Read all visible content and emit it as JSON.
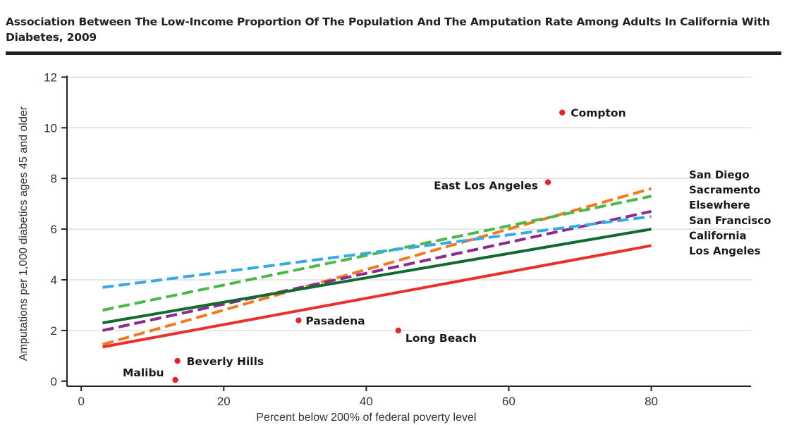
{
  "chart_data": {
    "type": "scatter",
    "title": "Association Between The Low-Income Proportion Of The Population And The Amputation Rate Among Adults In California With Diabetes, 2009",
    "xlabel": "Percent below 200% of federal poverty level",
    "ylabel": "Amputations per 1,000 diabetics ages 45 and older",
    "xlim": [
      -2,
      94
    ],
    "ylim": [
      -0.2,
      12.4
    ],
    "xticks": [
      0,
      20,
      40,
      60,
      80
    ],
    "yticks": [
      0,
      2,
      4,
      6,
      8,
      10,
      12
    ],
    "grid": "horizontal",
    "points": [
      {
        "label": "Compton",
        "x": 67.5,
        "y": 10.6
      },
      {
        "label": "East Los Angeles",
        "x": 65.5,
        "y": 7.85
      },
      {
        "label": "Pasadena",
        "x": 30.5,
        "y": 2.4
      },
      {
        "label": "Long Beach",
        "x": 44.5,
        "y": 2.0
      },
      {
        "label": "Beverly Hills",
        "x": 13.5,
        "y": 0.8
      },
      {
        "label": "Malibu",
        "x": 13.2,
        "y": 0.05
      }
    ],
    "point_color": "#e0262b",
    "lines": [
      {
        "name": "San Diego",
        "color": "#f07a24",
        "dashed": true,
        "x": [
          3,
          80
        ],
        "y": [
          1.45,
          7.6
        ]
      },
      {
        "name": "Sacramento",
        "color": "#4cb848",
        "dashed": true,
        "x": [
          3,
          80
        ],
        "y": [
          2.8,
          7.3
        ]
      },
      {
        "name": "Elsewhere",
        "color": "#8b2a8f",
        "dashed": true,
        "x": [
          3,
          80
        ],
        "y": [
          2.0,
          6.7
        ]
      },
      {
        "name": "San Francisco",
        "color": "#39a9e1",
        "dashed": true,
        "x": [
          3,
          80
        ],
        "y": [
          3.7,
          6.5
        ]
      },
      {
        "name": "California",
        "color": "#116b2e",
        "dashed": false,
        "x": [
          3,
          80
        ],
        "y": [
          2.3,
          6.0
        ]
      },
      {
        "name": "Los Angeles",
        "color": "#e8312f",
        "dashed": false,
        "x": [
          3,
          80
        ],
        "y": [
          1.35,
          5.35
        ]
      }
    ]
  }
}
